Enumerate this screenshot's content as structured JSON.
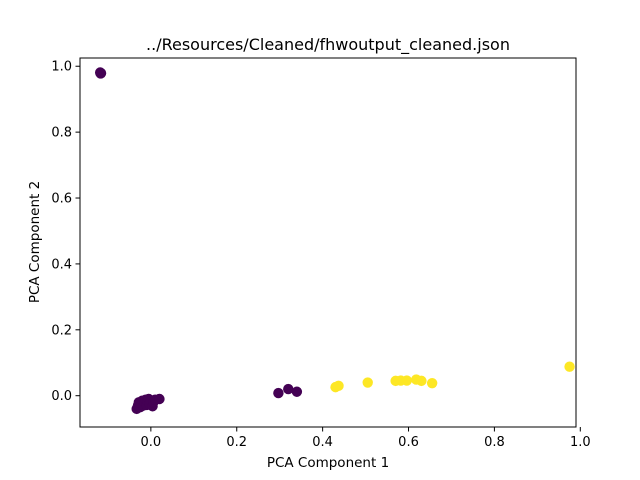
{
  "chart_data": {
    "type": "scatter",
    "title": "../Resources/Cleaned/fhwoutput_cleaned.json",
    "xlabel": "PCA Component 1",
    "ylabel": "PCA Component 2",
    "xlim": [
      -0.165,
      0.99
    ],
    "ylim": [
      -0.095,
      1.025
    ],
    "xticks": [
      "0.0",
      "0.2",
      "0.4",
      "0.6",
      "0.8",
      "1.0"
    ],
    "xtick_values": [
      0.0,
      0.2,
      0.4,
      0.6,
      0.8,
      1.0
    ],
    "yticks": [
      "0.0",
      "0.2",
      "0.4",
      "0.6",
      "0.8",
      "1.0"
    ],
    "ytick_values": [
      0.0,
      0.2,
      0.4,
      0.6,
      0.8,
      1.0
    ],
    "grid": false,
    "legend": "none",
    "series": [
      {
        "color": "#440154",
        "points": [
          [
            -0.118,
            0.981
          ],
          [
            -0.116,
            0.979
          ],
          [
            -0.117,
            0.978
          ],
          [
            -0.033,
            -0.04
          ],
          [
            -0.03,
            -0.03
          ],
          [
            -0.028,
            -0.02
          ],
          [
            -0.025,
            -0.035
          ],
          [
            -0.022,
            -0.025
          ],
          [
            -0.02,
            -0.015
          ],
          [
            -0.018,
            -0.03
          ],
          [
            -0.015,
            -0.02
          ],
          [
            -0.012,
            -0.012
          ],
          [
            -0.01,
            -0.028
          ],
          [
            -0.008,
            -0.018
          ],
          [
            -0.005,
            -0.01
          ],
          [
            -0.003,
            -0.025
          ],
          [
            0.0,
            -0.015
          ],
          [
            0.004,
            -0.032
          ],
          [
            0.006,
            -0.02
          ],
          [
            0.01,
            -0.012
          ],
          [
            0.02,
            -0.01
          ],
          [
            0.297,
            0.008
          ],
          [
            0.32,
            0.02
          ],
          [
            0.34,
            0.012
          ]
        ]
      },
      {
        "color": "#fde725",
        "points": [
          [
            0.43,
            0.026
          ],
          [
            0.437,
            0.03
          ],
          [
            0.505,
            0.04
          ],
          [
            0.57,
            0.045
          ],
          [
            0.582,
            0.046
          ],
          [
            0.596,
            0.046
          ],
          [
            0.618,
            0.049
          ],
          [
            0.63,
            0.045
          ],
          [
            0.655,
            0.038
          ],
          [
            0.975,
            0.088
          ]
        ]
      }
    ]
  }
}
